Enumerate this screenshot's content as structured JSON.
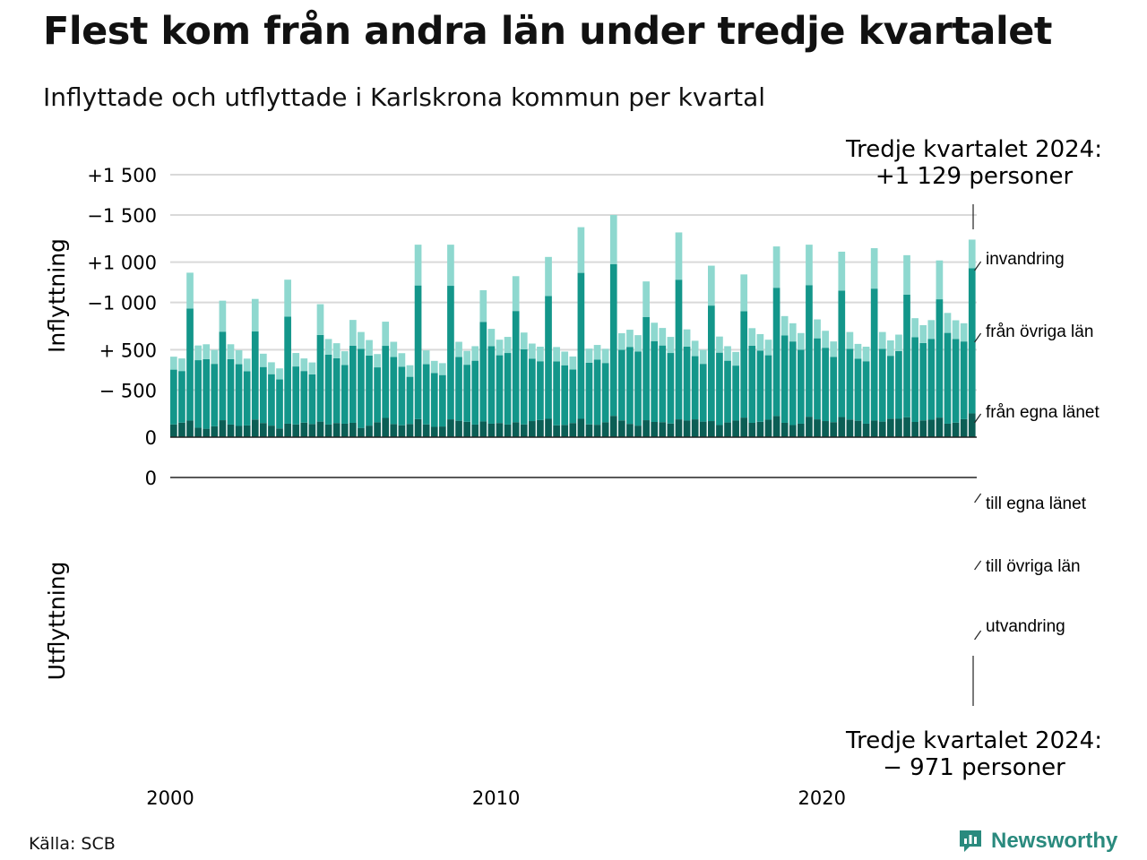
{
  "title": "Flest kom från andra län under tredje kvartalet",
  "subtitle": "Inflyttade och utflyttade i Karlskrona kommun per kvartal",
  "source": "Källa: SCB",
  "brand": {
    "name": "Newsworthy",
    "color": "#2a8a7e"
  },
  "colors": {
    "from_own_county": "#0b5e55",
    "from_other_counties": "#13968a",
    "immigration": "#8ed8cf",
    "to_own_county": "#c98300",
    "to_other_counties": "#f7a21f",
    "emigration": "#fdd897",
    "grid": "#d9d9d9"
  },
  "chart_data": [
    {
      "type": "bar",
      "stacked": true,
      "ylabel": "Inflyttning",
      "ylim": [
        0,
        1500
      ],
      "yticks": [
        {
          "value": 0,
          "label": "0"
        },
        {
          "value": 500,
          "label": "+  500"
        },
        {
          "value": 1000,
          "label": "+1 000"
        },
        {
          "value": 1500,
          "label": "+1 500"
        }
      ],
      "xticks": [
        {
          "value": 2000,
          "label": "2000"
        },
        {
          "value": 2010,
          "label": "2010"
        },
        {
          "value": 2020,
          "label": "2020"
        }
      ],
      "start": "2000 Q1",
      "end": "2024 Q3",
      "series_order": [
        "från egna länet",
        "från övriga län",
        "invandring"
      ],
      "series": [
        {
          "name": "från egna länet",
          "values": []
        },
        {
          "name": "från övriga län",
          "values": []
        },
        {
          "name": "invandring",
          "values": []
        }
      ],
      "annotation": {
        "line1": "Tredje kvartalet 2024:",
        "line2": "+1 129 personer",
        "value": 1129
      }
    },
    {
      "type": "bar",
      "stacked": true,
      "ylabel": "Utflyttning",
      "ylim": [
        -1500,
        0
      ],
      "yticks": [
        {
          "value": 0,
          "label": "0"
        },
        {
          "value": -500,
          "label": "−  500"
        },
        {
          "value": -1000,
          "label": "−1 000"
        },
        {
          "value": -1500,
          "label": "−1 500"
        }
      ],
      "start": "2000 Q1",
      "end": "2024 Q3",
      "series_order": [
        "till egna länet",
        "till övriga län",
        "utvandring"
      ],
      "series": [
        {
          "name": "till egna länet",
          "values": []
        },
        {
          "name": "till övriga län",
          "values": []
        },
        {
          "name": "utvandring",
          "values": []
        }
      ],
      "annotation": {
        "line1": "Tredje kvartalet 2024:",
        "line2": "−  971 personer",
        "value": -971
      }
    }
  ]
}
